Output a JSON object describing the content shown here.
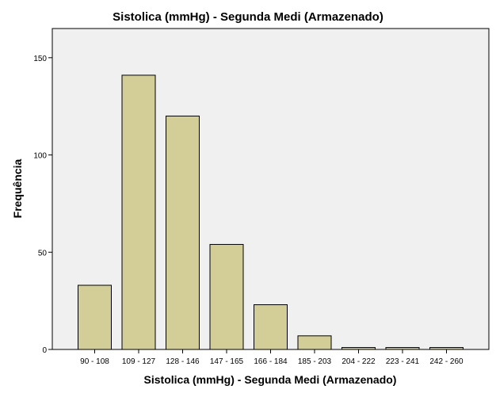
{
  "chart_data": {
    "type": "bar",
    "title": "Sistolica (mmHg) - Segunda Medi (Armazenado)",
    "xlabel": "Sistolica (mmHg) - Segunda Medi (Armazenado)",
    "ylabel": "Frequência",
    "categories": [
      "90 - 108",
      "109 - 127",
      "128 - 146",
      "147 - 165",
      "166 - 184",
      "185 - 203",
      "204 - 222",
      "223 - 241",
      "242 - 260"
    ],
    "values": [
      33,
      141,
      120,
      54,
      23,
      7,
      1,
      1,
      1
    ],
    "ylim": [
      0,
      165
    ],
    "yticks": [
      0,
      50,
      100,
      150
    ],
    "grid": false,
    "colors": {
      "bar_fill": "#d3ce98",
      "bar_stroke": "#000000",
      "plot_bg": "#f0f0f0"
    }
  }
}
